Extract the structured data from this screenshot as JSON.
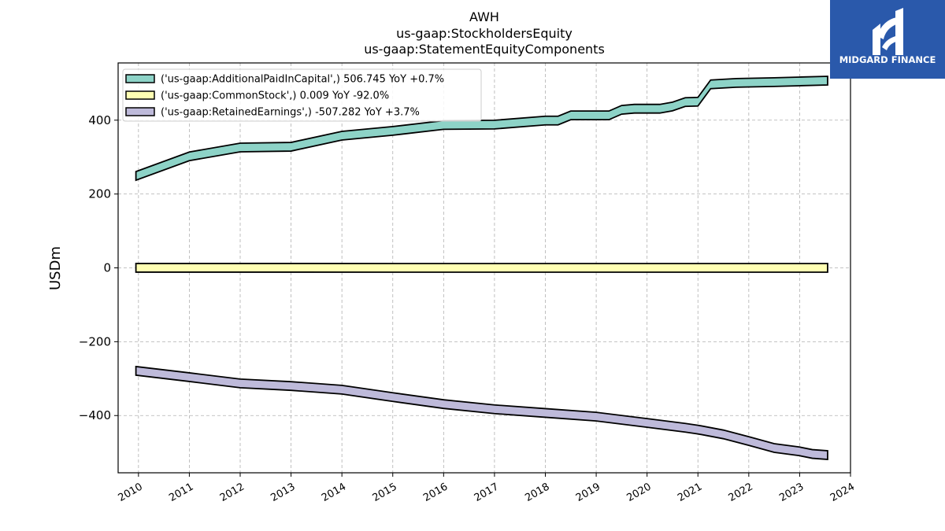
{
  "brand": {
    "name": "MIDGARD FINANCE",
    "bg_color": "#2a59ab",
    "icon": "midgard-logo-icon"
  },
  "chart_data": {
    "type": "area",
    "title_lines": [
      "AWH",
      "us-gaap:StockholdersEquity",
      "us-gaap:StatementEquityComponents"
    ],
    "xlabel": "",
    "ylabel": "USDm",
    "xlim": [
      2009.6,
      2024.0
    ],
    "ylim": [
      -555,
      555
    ],
    "x_ticks": [
      2010,
      2011,
      2012,
      2013,
      2014,
      2015,
      2016,
      2017,
      2018,
      2019,
      2020,
      2021,
      2022,
      2023,
      2024
    ],
    "x_tick_labels": [
      "2010",
      "2011",
      "2012",
      "2013",
      "2014",
      "2015",
      "2016",
      "2017",
      "2018",
      "2019",
      "2020",
      "2021",
      "2022",
      "2023",
      "2024"
    ],
    "y_ticks": [
      -400,
      -200,
      0,
      200,
      400
    ],
    "y_tick_labels": [
      "−400",
      "−200",
      "0",
      "200",
      "400"
    ],
    "grid": true,
    "legend_position": "top-left",
    "series": [
      {
        "name": "('us-gaap:AdditionalPaidInCapital',) 506.745 YoY +0.7%",
        "color": "#8dd3c7",
        "points": [
          {
            "x": 2009.95,
            "y": 249
          },
          {
            "x": 2011.0,
            "y": 302
          },
          {
            "x": 2012.0,
            "y": 326
          },
          {
            "x": 2013.0,
            "y": 328
          },
          {
            "x": 2014.0,
            "y": 358
          },
          {
            "x": 2015.0,
            "y": 371
          },
          {
            "x": 2016.0,
            "y": 387
          },
          {
            "x": 2017.0,
            "y": 388
          },
          {
            "x": 2018.0,
            "y": 399
          },
          {
            "x": 2018.25,
            "y": 399
          },
          {
            "x": 2018.5,
            "y": 413
          },
          {
            "x": 2019.25,
            "y": 413
          },
          {
            "x": 2019.5,
            "y": 428
          },
          {
            "x": 2019.75,
            "y": 431
          },
          {
            "x": 2020.25,
            "y": 431
          },
          {
            "x": 2020.5,
            "y": 437
          },
          {
            "x": 2020.75,
            "y": 449
          },
          {
            "x": 2021.0,
            "y": 450
          },
          {
            "x": 2021.25,
            "y": 497
          },
          {
            "x": 2021.75,
            "y": 501
          },
          {
            "x": 2022.5,
            "y": 503
          },
          {
            "x": 2023.0,
            "y": 505
          },
          {
            "x": 2023.55,
            "y": 507
          }
        ]
      },
      {
        "name": "('us-gaap:CommonStock',) 0.009 YoY -92.0%",
        "color": "#ffffb3",
        "points": [
          {
            "x": 2009.95,
            "y": 0.1
          },
          {
            "x": 2023.55,
            "y": 0.009
          }
        ]
      },
      {
        "name": "('us-gaap:RetainedEarnings',) -507.282 YoY +3.7%",
        "color": "#bebada",
        "points": [
          {
            "x": 2009.95,
            "y": -279
          },
          {
            "x": 2011.0,
            "y": -296
          },
          {
            "x": 2012.0,
            "y": -313
          },
          {
            "x": 2013.0,
            "y": -320
          },
          {
            "x": 2014.0,
            "y": -330
          },
          {
            "x": 2015.0,
            "y": -350
          },
          {
            "x": 2016.0,
            "y": -369
          },
          {
            "x": 2017.0,
            "y": -383
          },
          {
            "x": 2018.0,
            "y": -393
          },
          {
            "x": 2019.0,
            "y": -403
          },
          {
            "x": 2020.0,
            "y": -420
          },
          {
            "x": 2020.75,
            "y": -433
          },
          {
            "x": 2021.0,
            "y": -438
          },
          {
            "x": 2021.5,
            "y": -451
          },
          {
            "x": 2022.0,
            "y": -469
          },
          {
            "x": 2022.5,
            "y": -488
          },
          {
            "x": 2023.0,
            "y": -497
          },
          {
            "x": 2023.25,
            "y": -504
          },
          {
            "x": 2023.55,
            "y": -507
          }
        ]
      }
    ]
  }
}
